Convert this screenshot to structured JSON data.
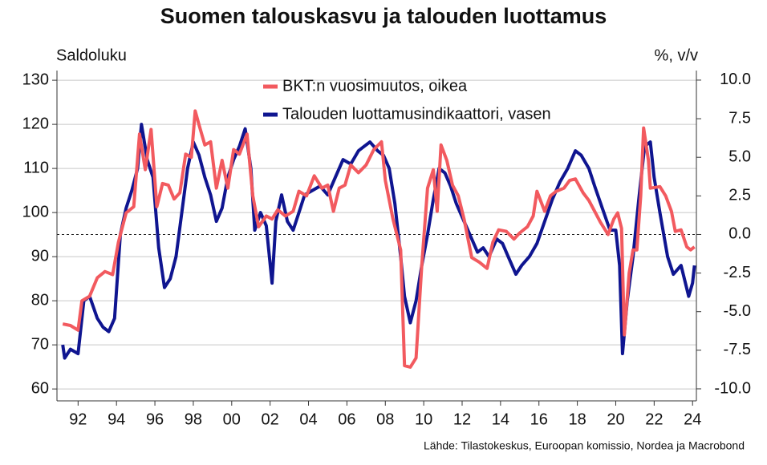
{
  "chart_data": {
    "type": "line",
    "title": "Suomen talouskasvu ja talouden luottamus",
    "y_label": "Saldoluku",
    "y2_label": "%, v/v",
    "source": "Lähde: Tilastokeskus, Euroopan komissio, Nordea ja Macrobond",
    "xlim": [
      1990.9,
      2024.2
    ],
    "xticks": [
      {
        "value": 1992,
        "label": "92"
      },
      {
        "value": 1994,
        "label": "94"
      },
      {
        "value": 1996,
        "label": "96"
      },
      {
        "value": 1998,
        "label": "98"
      },
      {
        "value": 2000,
        "label": "00"
      },
      {
        "value": 2002,
        "label": "02"
      },
      {
        "value": 2004,
        "label": "04"
      },
      {
        "value": 2006,
        "label": "06"
      },
      {
        "value": 2008,
        "label": "08"
      },
      {
        "value": 2010,
        "label": "10"
      },
      {
        "value": 2012,
        "label": "12"
      },
      {
        "value": 2014,
        "label": "14"
      },
      {
        "value": 2016,
        "label": "16"
      },
      {
        "value": 2018,
        "label": "18"
      },
      {
        "value": 2020,
        "label": "20"
      },
      {
        "value": 2022,
        "label": "22"
      },
      {
        "value": 2024,
        "label": "24"
      }
    ],
    "ylim": [
      57.3,
      132.2
    ],
    "yticks": [
      60,
      70,
      80,
      90,
      100,
      110,
      120,
      130
    ],
    "y2lim": [
      -10.78,
      10.62
    ],
    "y2ticks": [
      {
        "value": 10,
        "label": "10.0"
      },
      {
        "value": 7.5,
        "label": "7.5"
      },
      {
        "value": 5,
        "label": "5.0"
      },
      {
        "value": 2.5,
        "label": "2.5"
      },
      {
        "value": 0,
        "label": "0.0"
      },
      {
        "value": -2.5,
        "label": "-2.5"
      },
      {
        "value": -5,
        "label": "-5.0"
      },
      {
        "value": -7.5,
        "label": "-7.5"
      },
      {
        "value": -10,
        "label": "-10.0"
      }
    ],
    "y2_reference_line": 0,
    "grid": true,
    "series": [
      {
        "name": "BKT:n vuosimuutos, oikea",
        "color": "#f25a5f",
        "axis": "y2",
        "x": [
          1991.2,
          1991.6,
          1992.0,
          1992.2,
          1992.6,
          1993.0,
          1993.4,
          1993.8,
          1994.1,
          1994.5,
          1994.9,
          1995.2,
          1995.5,
          1995.8,
          1996.1,
          1996.4,
          1996.7,
          1997.0,
          1997.3,
          1997.6,
          1997.9,
          1998.1,
          1998.3,
          1998.6,
          1998.9,
          1999.2,
          1999.5,
          1999.8,
          2000.1,
          2000.4,
          2000.8,
          2001.1,
          2001.4,
          2001.8,
          2002.1,
          2002.4,
          2002.8,
          2003.2,
          2003.5,
          2003.9,
          2004.3,
          2004.7,
          2005.0,
          2005.3,
          2005.6,
          2005.9,
          2006.2,
          2006.6,
          2007.0,
          2007.4,
          2007.8,
          2008.0,
          2008.4,
          2008.8,
          2009.0,
          2009.3,
          2009.6,
          2009.9,
          2010.2,
          2010.5,
          2010.7,
          2010.9,
          2011.2,
          2011.5,
          2011.8,
          2012.1,
          2012.5,
          2012.9,
          2013.3,
          2013.6,
          2013.9,
          2014.3,
          2014.7,
          2015.0,
          2015.4,
          2015.7,
          2015.9,
          2016.3,
          2016.6,
          2016.9,
          2017.3,
          2017.6,
          2017.9,
          2018.3,
          2018.6,
          2018.9,
          2019.2,
          2019.6,
          2019.9,
          2020.1,
          2020.3,
          2020.45,
          2020.7,
          2020.9,
          2021.1,
          2021.3,
          2021.45,
          2021.7,
          2021.8,
          2022.3,
          2022.6,
          2022.9,
          2023.1,
          2023.4,
          2023.7,
          2023.9,
          2024.1
        ],
        "values": [
          -5.8,
          -5.9,
          -6.2,
          -4.3,
          -4.0,
          -2.8,
          -2.4,
          -2.6,
          -0.5,
          1.4,
          1.8,
          6.5,
          4.2,
          6.8,
          1.8,
          3.3,
          3.2,
          2.3,
          2.7,
          5.2,
          5.0,
          8.0,
          7.1,
          5.8,
          6.0,
          3.0,
          4.8,
          3.0,
          5.5,
          5.2,
          6.5,
          2.5,
          0.5,
          1.2,
          1.0,
          1.6,
          1.2,
          1.5,
          2.8,
          2.5,
          3.8,
          3.0,
          3.2,
          1.5,
          3.0,
          3.2,
          4.5,
          4.0,
          4.5,
          5.5,
          6.0,
          3.5,
          1.0,
          -1.0,
          -8.5,
          -8.6,
          -8.0,
          -2.0,
          3.0,
          4.2,
          1.5,
          5.8,
          4.8,
          3.2,
          2.5,
          1.0,
          -1.5,
          -1.8,
          -2.2,
          -0.5,
          0.3,
          0.2,
          -0.3,
          0.1,
          0.5,
          1.2,
          2.8,
          1.5,
          2.5,
          2.8,
          3.0,
          3.5,
          3.6,
          2.7,
          2.2,
          1.5,
          0.8,
          0.0,
          1.0,
          1.4,
          0.4,
          -6.5,
          -2.5,
          -1.0,
          -1.0,
          2.5,
          6.9,
          4.8,
          3.0,
          3.1,
          2.5,
          1.5,
          0.2,
          0.3,
          -0.8,
          -1.0,
          -0.8
        ]
      },
      {
        "name": "Talouden luottamusindikaattori, vasen",
        "color": "#0f1590",
        "axis": "y",
        "x": [
          1991.2,
          1991.3,
          1991.6,
          1992.0,
          1992.3,
          1992.6,
          1993.0,
          1993.3,
          1993.6,
          1993.9,
          1994.2,
          1994.5,
          1994.8,
          1995.1,
          1995.3,
          1995.6,
          1995.9,
          1996.2,
          1996.5,
          1996.8,
          1997.1,
          1997.4,
          1997.7,
          1998.0,
          1998.3,
          1998.6,
          1998.9,
          1999.2,
          1999.5,
          1999.8,
          2000.1,
          2000.4,
          2000.7,
          2001.0,
          2001.2,
          2001.5,
          2001.8,
          2002.1,
          2002.3,
          2002.6,
          2002.9,
          2003.2,
          2003.5,
          2003.8,
          2004.2,
          2004.6,
          2005.0,
          2005.4,
          2005.8,
          2006.2,
          2006.6,
          2006.9,
          2007.2,
          2007.6,
          2007.9,
          2008.2,
          2008.5,
          2008.8,
          2009.0,
          2009.3,
          2009.6,
          2009.9,
          2010.2,
          2010.5,
          2010.8,
          2011.1,
          2011.4,
          2011.7,
          2011.9,
          2012.2,
          2012.5,
          2012.8,
          2013.1,
          2013.4,
          2013.8,
          2014.1,
          2014.4,
          2014.8,
          2015.1,
          2015.5,
          2015.9,
          2016.3,
          2016.7,
          2017.1,
          2017.5,
          2017.9,
          2018.2,
          2018.6,
          2018.9,
          2019.3,
          2019.7,
          2020.0,
          2020.2,
          2020.35,
          2020.6,
          2020.9,
          2021.2,
          2021.5,
          2021.8,
          2022.0,
          2022.3,
          2022.7,
          2023.0,
          2023.4,
          2023.8,
          2024.0,
          2024.1
        ],
        "values": [
          70,
          67,
          69,
          68,
          80,
          81,
          76,
          74,
          73,
          76,
          95,
          101,
          105,
          110,
          120,
          112,
          108,
          92,
          83,
          85,
          90,
          100,
          110,
          116,
          113,
          108,
          104,
          98,
          101,
          108,
          112,
          115,
          119,
          110,
          96,
          100,
          97,
          84,
          98,
          104,
          98,
          96,
          100,
          104,
          105,
          106,
          104,
          108,
          112,
          111,
          114,
          115,
          116,
          114,
          113,
          110,
          102,
          90,
          81,
          75,
          80,
          88,
          95,
          103,
          110,
          109,
          106,
          102,
          100,
          97,
          94,
          91,
          92,
          90,
          94,
          93,
          90,
          86,
          88,
          90,
          93,
          98,
          103,
          107,
          110,
          114,
          113,
          110,
          106,
          101,
          96,
          96,
          88,
          68,
          80,
          90,
          103,
          115,
          116,
          108,
          100,
          90,
          86,
          88,
          81,
          84,
          88
        ]
      }
    ]
  }
}
